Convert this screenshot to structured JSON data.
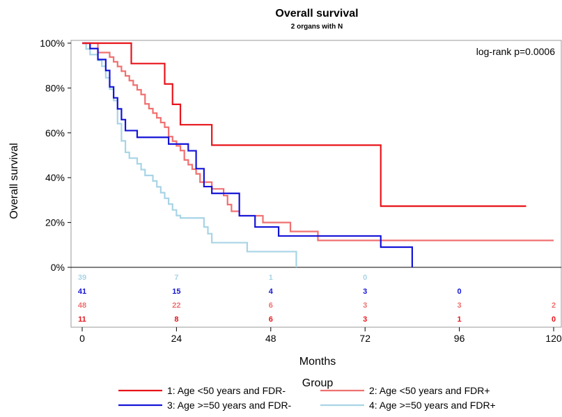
{
  "chart_data": {
    "type": "line",
    "title": "Overall survival",
    "subtitle": "2 organs with N",
    "xlabel": "Months",
    "ylabel": "Overall survival",
    "xlim": [
      0,
      120
    ],
    "ylim": [
      0,
      100
    ],
    "x_ticks": [
      "0",
      "24",
      "48",
      "72",
      "96",
      "120"
    ],
    "y_ticks": [
      "0%",
      "20%",
      "40%",
      "60%",
      "80%",
      "100%"
    ],
    "annotation": "log-rank p=0.0006",
    "legend_title": "Group",
    "series": [
      {
        "name": "1: Age <50 years and FDR-",
        "color": "#e8141a",
        "steps": [
          [
            0,
            100
          ],
          [
            12.5,
            90.9
          ],
          [
            21,
            81.8
          ],
          [
            23,
            72.7
          ],
          [
            25,
            63.6
          ],
          [
            33,
            54.5
          ],
          [
            76,
            27.3
          ],
          [
            113,
            27.3
          ]
        ],
        "at_risk": [
          "11",
          "8",
          "6",
          "3",
          "1",
          "0"
        ]
      },
      {
        "name": "2: Age <50 years and FDR+",
        "color": "#f07070",
        "steps": [
          [
            0,
            100
          ],
          [
            4,
            95.8
          ],
          [
            7,
            93.8
          ],
          [
            8,
            91.7
          ],
          [
            9,
            89.6
          ],
          [
            10,
            87.5
          ],
          [
            11,
            85.4
          ],
          [
            12,
            83.3
          ],
          [
            13,
            81.3
          ],
          [
            14,
            79.2
          ],
          [
            15,
            77.1
          ],
          [
            16,
            72.9
          ],
          [
            17,
            70.8
          ],
          [
            18,
            68.8
          ],
          [
            19,
            66.7
          ],
          [
            20,
            64.6
          ],
          [
            21,
            62.5
          ],
          [
            22,
            58.3
          ],
          [
            23,
            56.3
          ],
          [
            24,
            54.2
          ],
          [
            25,
            52.1
          ],
          [
            26,
            47.9
          ],
          [
            27,
            45.8
          ],
          [
            28,
            43.8
          ],
          [
            29,
            41.7
          ],
          [
            30,
            38
          ],
          [
            33,
            35
          ],
          [
            36,
            32
          ],
          [
            37,
            28
          ],
          [
            38,
            25
          ],
          [
            40,
            23
          ],
          [
            46,
            20
          ],
          [
            53,
            16
          ],
          [
            60,
            12
          ],
          [
            120,
            12
          ]
        ],
        "at_risk": [
          "48",
          "22",
          "6",
          "3",
          "3",
          "2"
        ]
      },
      {
        "name": "3: Age >=50 years and FDR-",
        "color": "#1414d8",
        "steps": [
          [
            0,
            100
          ],
          [
            2,
            97.6
          ],
          [
            4,
            92.7
          ],
          [
            6,
            87.8
          ],
          [
            7,
            80.5
          ],
          [
            8,
            75.6
          ],
          [
            9,
            70.7
          ],
          [
            10,
            65.9
          ],
          [
            11,
            61
          ],
          [
            14,
            58
          ],
          [
            21,
            58
          ],
          [
            22,
            55
          ],
          [
            27,
            52
          ],
          [
            29,
            44
          ],
          [
            31,
            36
          ],
          [
            33,
            33
          ],
          [
            40,
            23
          ],
          [
            44,
            18
          ],
          [
            50,
            14
          ],
          [
            76,
            9
          ],
          [
            84,
            0
          ]
        ],
        "at_risk": [
          "41",
          "15",
          "4",
          "3",
          "0",
          ""
        ]
      },
      {
        "name": "4: Age >=50 years and FDR+",
        "color": "#a8d4e6",
        "steps": [
          [
            0,
            100
          ],
          [
            1,
            97.4
          ],
          [
            2,
            94.9
          ],
          [
            4,
            92.3
          ],
          [
            5,
            89.7
          ],
          [
            6,
            84.6
          ],
          [
            7,
            79.5
          ],
          [
            8,
            74.4
          ],
          [
            9,
            64.1
          ],
          [
            10,
            56.4
          ],
          [
            11,
            51.3
          ],
          [
            12,
            48.7
          ],
          [
            14,
            46.2
          ],
          [
            15,
            43.6
          ],
          [
            16,
            41
          ],
          [
            18,
            38.5
          ],
          [
            19,
            35.9
          ],
          [
            20,
            33.3
          ],
          [
            21,
            30.8
          ],
          [
            22,
            28.2
          ],
          [
            23,
            25.6
          ],
          [
            24,
            23.1
          ],
          [
            25,
            22
          ],
          [
            31,
            18
          ],
          [
            32,
            15
          ],
          [
            33,
            11
          ],
          [
            42,
            7
          ],
          [
            54,
            7
          ],
          [
            54.5,
            0
          ]
        ],
        "at_risk": [
          "39",
          "7",
          "1",
          "0",
          "",
          ""
        ]
      }
    ]
  }
}
